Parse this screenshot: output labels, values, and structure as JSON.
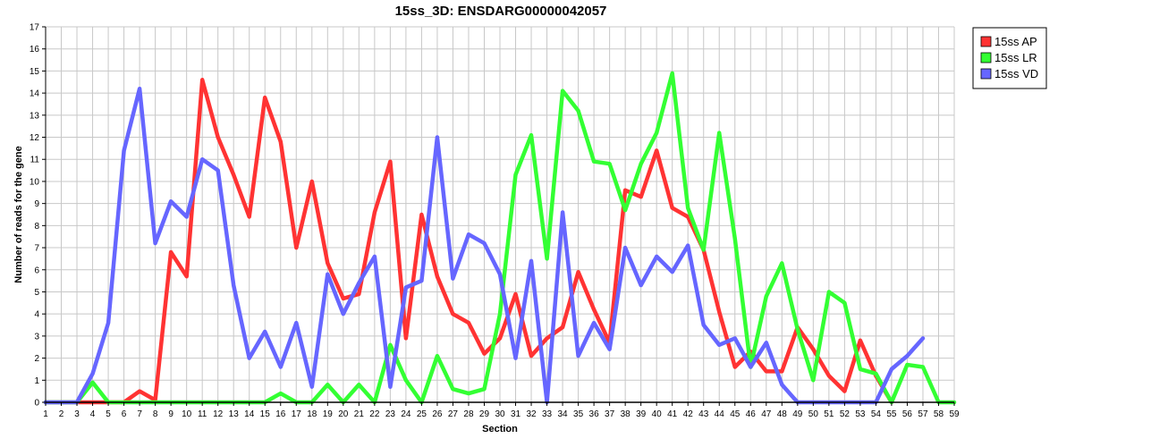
{
  "chart_data": {
    "type": "line",
    "title": "15ss_3D: ENSDARG00000042057",
    "xlabel": "Section",
    "ylabel": "Number of reads for the gene",
    "x": [
      1,
      2,
      3,
      4,
      5,
      6,
      7,
      8,
      9,
      10,
      11,
      12,
      13,
      14,
      15,
      16,
      17,
      18,
      19,
      20,
      21,
      22,
      23,
      24,
      25,
      26,
      27,
      28,
      29,
      30,
      31,
      32,
      33,
      34,
      35,
      36,
      37,
      38,
      39,
      40,
      41,
      42,
      43,
      44,
      45,
      46,
      47,
      48,
      49,
      50,
      51,
      52,
      53,
      54,
      55,
      56,
      57,
      58,
      59
    ],
    "xlim": [
      1,
      59
    ],
    "ylim": [
      0,
      17
    ],
    "yticks": [
      0,
      1,
      2,
      3,
      4,
      5,
      6,
      7,
      8,
      9,
      10,
      11,
      12,
      13,
      14,
      15,
      16,
      17
    ],
    "grid": true,
    "legend_position": "top-right",
    "series": [
      {
        "name": "15ss AP",
        "color": "#ff3333",
        "values": [
          0,
          0,
          0,
          0,
          0,
          0,
          0.5,
          0.1,
          6.8,
          5.7,
          14.6,
          12,
          10.3,
          8.4,
          13.8,
          11.8,
          7.0,
          10.0,
          6.3,
          4.7,
          4.9,
          8.6,
          10.9,
          2.9,
          8.5,
          5.7,
          4.0,
          3.6,
          2.2,
          2.9,
          4.9,
          2.1,
          2.9,
          3.4,
          5.9,
          4.2,
          2.7,
          9.6,
          9.3,
          11.4,
          8.8,
          8.4,
          6.9,
          4.1,
          1.6,
          2.3,
          1.4,
          1.4,
          3.4,
          2.4,
          1.2,
          0.5,
          2.8,
          1.2,
          0,
          null,
          null,
          null,
          null
        ]
      },
      {
        "name": "15ss LR",
        "color": "#33ff33",
        "values": [
          0,
          0,
          0,
          0.9,
          0,
          0,
          0,
          0,
          0,
          0,
          0,
          0,
          0,
          0,
          0,
          0.4,
          0,
          0,
          0.8,
          0,
          0.8,
          0,
          2.6,
          1.0,
          0,
          2.1,
          0.6,
          0.4,
          0.6,
          4.0,
          10.3,
          12.1,
          6.5,
          14.1,
          13.2,
          10.9,
          10.8,
          8.7,
          10.8,
          12.2,
          14.9,
          8.8,
          6.9,
          12.2,
          7.4,
          1.6,
          4.8,
          6.3,
          3.3,
          1.0,
          5.0,
          4.5,
          1.5,
          1.3,
          0,
          1.7,
          1.6,
          0,
          0
        ]
      },
      {
        "name": "15ss VD",
        "color": "#6666ff",
        "values": [
          0,
          0,
          0,
          1.3,
          3.6,
          11.4,
          14.2,
          7.2,
          9.1,
          8.4,
          11.0,
          10.5,
          5.3,
          2.0,
          3.2,
          1.6,
          3.6,
          0.7,
          5.8,
          4.0,
          5.4,
          6.6,
          0.7,
          5.2,
          5.5,
          12.0,
          5.6,
          7.6,
          7.2,
          5.8,
          2.0,
          6.4,
          0,
          8.6,
          2.1,
          3.6,
          2.4,
          7.0,
          5.3,
          6.6,
          5.9,
          7.1,
          3.5,
          2.6,
          2.9,
          1.6,
          2.7,
          0.8,
          0,
          0,
          0,
          0,
          0,
          0,
          1.5,
          2.1,
          2.9,
          null,
          null
        ]
      }
    ]
  }
}
